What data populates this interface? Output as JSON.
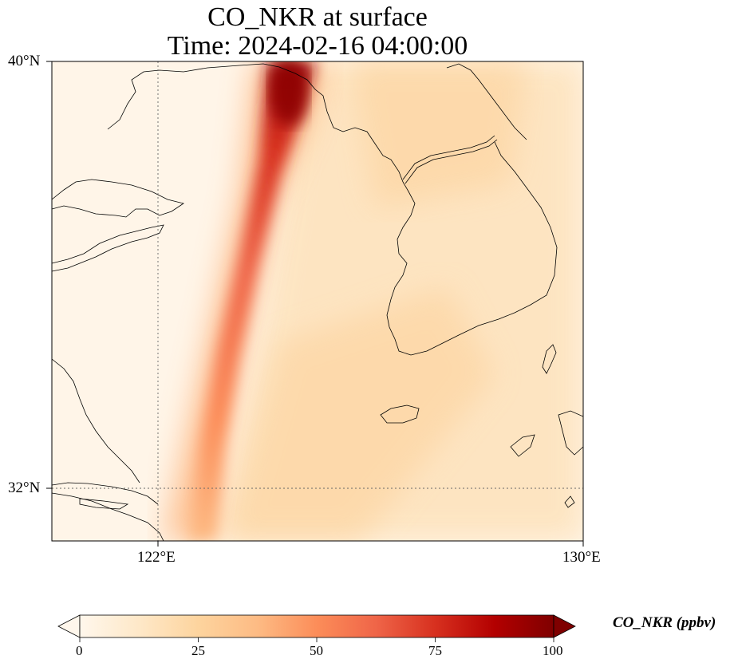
{
  "title": {
    "line1": "CO_NKR at surface",
    "line2": "Time: 2024-02-16 04:00:00"
  },
  "map": {
    "lon_range_deg": [
      120,
      130
    ],
    "lat_range_deg": [
      31,
      40
    ],
    "gridlines": {
      "longitudes": [
        122
      ],
      "latitudes": [
        32
      ]
    },
    "lat_labels": [
      "40°N",
      "32°N"
    ],
    "lon_labels": [
      "122°E",
      "130°E"
    ],
    "colormap": "OrRd"
  },
  "colorbar": {
    "label": "CO_NKR (ppbv)",
    "ticks": [
      "0",
      "25",
      "50",
      "75",
      "100"
    ],
    "min": 0,
    "max": 100,
    "extend": "both",
    "colors": [
      "#fff7ec",
      "#fee8c8",
      "#fdd49e",
      "#fdbb84",
      "#fc8d59",
      "#ef6548",
      "#d7301f",
      "#b30000",
      "#7f0000"
    ]
  }
}
